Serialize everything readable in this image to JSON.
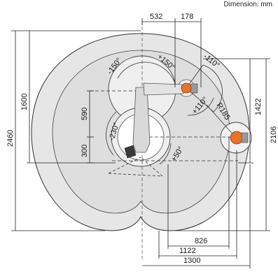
{
  "unit_label": "Dimension: mm",
  "dimensions": {
    "d532": "532",
    "d178": "178",
    "d1600": "1600",
    "d2460": "2460",
    "d590": "590",
    "d300": "300",
    "d1422": "1422",
    "d2106": "2106",
    "d826": "826",
    "d1122": "1122",
    "d1300": "1300",
    "r185": "R185"
  },
  "angles": {
    "a_m150": "-150°",
    "a_p150": "+150°",
    "a_m110": "-110°",
    "a_p110": "+110°",
    "a_m230": "-230°",
    "a_p50": "+50°"
  },
  "colors": {
    "workspace_fill": "#e6e6e6",
    "inner_fill": "#f4f4f4",
    "line": "#222222",
    "robot_body": "#dcdcdc",
    "motor_orange": "#e8742a"
  }
}
